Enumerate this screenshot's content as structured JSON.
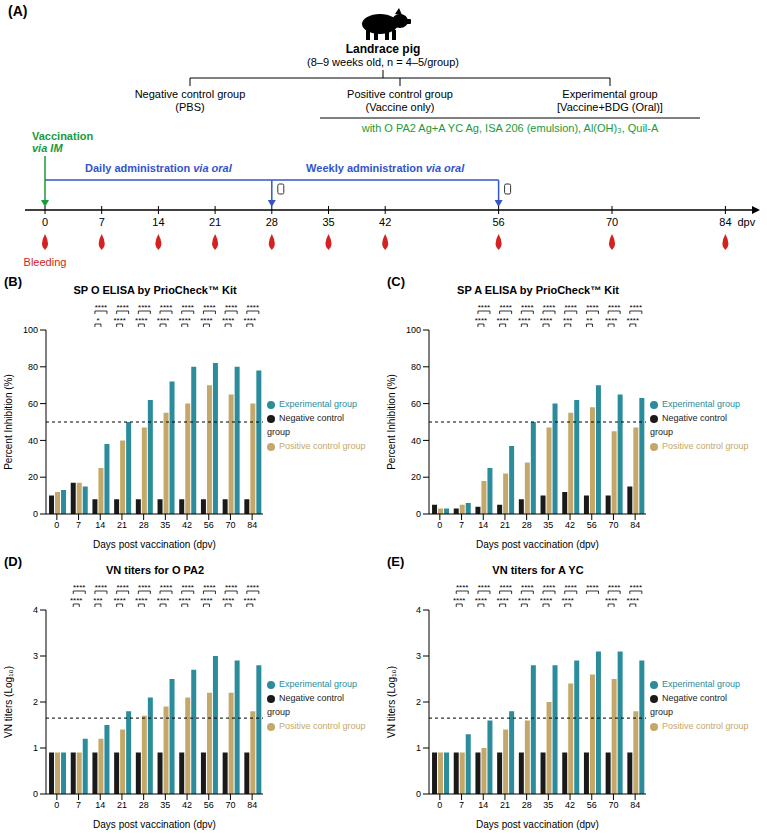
{
  "diagram": {
    "label": "(A)",
    "animal": {
      "title": "Landrace pig",
      "subtitle": "(8–9 weeks old, n = 4–5/group)"
    },
    "groups": [
      {
        "name": "Negative control group",
        "detail": "(PBS)"
      },
      {
        "name": "Positive control group",
        "detail": "(Vaccine only)"
      },
      {
        "name": "Experimental group",
        "detail": "[Vaccine+BDG (Oral)]"
      }
    ],
    "vaccine_note": "with O PA2 Ag+A YC Ag, ISA 206 (emulsion), Al(OH)₃, Quil-A",
    "timeline": {
      "days": [
        0,
        7,
        14,
        21,
        28,
        35,
        42,
        56,
        70,
        84
      ],
      "unit": "dpv",
      "vaccination": {
        "day": 0,
        "label": "Vaccination",
        "route": "via IM"
      },
      "daily": {
        "start": 0,
        "end": 28,
        "label": "Daily administration",
        "route": "via oral"
      },
      "weekly": {
        "start": 28,
        "end": 56,
        "label": "Weekly administration",
        "route": "via oral"
      },
      "bleeding": {
        "label": "Bleeding",
        "days": [
          0,
          7,
          14,
          21,
          28,
          35,
          42,
          56,
          70,
          84
        ]
      }
    }
  },
  "chart_data": [
    {
      "panel": "(B)",
      "type": "bar",
      "title": "SP O ELISA by PrioCheck™ Kit",
      "x_label": "Days post vaccination (dpv)",
      "y_label": "Percent Inhibition (%)",
      "categories": [
        "0",
        "7",
        "14",
        "21",
        "28",
        "35",
        "42",
        "56",
        "70",
        "84"
      ],
      "series": [
        {
          "name": "Negative control group",
          "color": "#1a1a1a",
          "values": [
            10,
            17,
            8,
            8,
            8,
            8,
            8,
            8,
            8,
            8
          ]
        },
        {
          "name": "Positive control group",
          "color": "#c4a86a",
          "values": [
            12,
            17,
            25,
            40,
            47,
            55,
            60,
            70,
            65,
            60
          ]
        },
        {
          "name": "Experimental group",
          "color": "#2b8c9c",
          "values": [
            13,
            15,
            38,
            50,
            62,
            72,
            80,
            82,
            80,
            78
          ]
        }
      ],
      "ylim": [
        0,
        100
      ],
      "yticks": [
        0,
        20,
        40,
        60,
        80,
        100
      ],
      "threshold": 50,
      "significance": {
        "upper": [
          null,
          null,
          "****",
          "****",
          "****",
          "****",
          "****",
          "****",
          "****",
          "****"
        ],
        "lower": [
          null,
          null,
          "*",
          "****",
          "****",
          "****",
          "****",
          "****",
          "****",
          "****"
        ]
      },
      "legend": "right"
    },
    {
      "panel": "(C)",
      "type": "bar",
      "title": "SP A ELISA by PrioCheck™ Kit",
      "x_label": "Days post vaccination (dpv)",
      "y_label": "Percent Inhibition (%)",
      "categories": [
        "0",
        "7",
        "14",
        "21",
        "28",
        "35",
        "42",
        "56",
        "70",
        "84"
      ],
      "series": [
        {
          "name": "Negative control group",
          "color": "#1a1a1a",
          "values": [
            5,
            3,
            4,
            5,
            8,
            10,
            12,
            10,
            10,
            15
          ]
        },
        {
          "name": "Positive control group",
          "color": "#c4a86a",
          "values": [
            3,
            5,
            18,
            22,
            28,
            47,
            55,
            58,
            45,
            47
          ]
        },
        {
          "name": "Experimental group",
          "color": "#2b8c9c",
          "values": [
            3,
            6,
            25,
            37,
            50,
            60,
            62,
            70,
            65,
            63
          ]
        }
      ],
      "ylim": [
        0,
        100
      ],
      "yticks": [
        0,
        20,
        40,
        60,
        80,
        100
      ],
      "threshold": 50,
      "significance": {
        "upper": [
          null,
          null,
          "****",
          "****",
          "****",
          "****",
          "****",
          "****",
          "****",
          "****"
        ],
        "lower": [
          null,
          null,
          "****",
          "****",
          "****",
          "****",
          "***",
          "**",
          "****",
          "****"
        ]
      },
      "legend": "right"
    },
    {
      "panel": "(D)",
      "type": "bar",
      "title": "VN titers for O PA2",
      "x_label": "Days post vaccination (dpv)",
      "y_label": "VN titers (Log₁₀)",
      "categories": [
        "0",
        "7",
        "14",
        "21",
        "28",
        "35",
        "42",
        "56",
        "70",
        "84"
      ],
      "series": [
        {
          "name": "Negative control group",
          "color": "#1a1a1a",
          "values": [
            0.9,
            0.9,
            0.9,
            0.9,
            0.9,
            0.9,
            0.9,
            0.9,
            0.9,
            0.9
          ]
        },
        {
          "name": "Positive control group",
          "color": "#c4a86a",
          "values": [
            0.9,
            0.9,
            1.2,
            1.4,
            1.7,
            1.9,
            2.1,
            2.2,
            2.2,
            1.8
          ]
        },
        {
          "name": "Experimental group",
          "color": "#2b8c9c",
          "values": [
            0.9,
            1.2,
            1.5,
            1.8,
            2.1,
            2.5,
            2.7,
            3.0,
            2.9,
            2.8
          ]
        }
      ],
      "ylim": [
        0,
        4
      ],
      "yticks": [
        0,
        1,
        2,
        3,
        4
      ],
      "threshold": 1.65,
      "significance": {
        "upper": [
          null,
          "****",
          "****",
          "****",
          "****",
          "****",
          "****",
          "****",
          "****",
          "****"
        ],
        "lower": [
          null,
          "****",
          "***",
          "****",
          "****",
          "****",
          "****",
          "****",
          "****",
          "****"
        ]
      },
      "legend": "right"
    },
    {
      "panel": "(E)",
      "type": "bar",
      "title": "VN titers for A YC",
      "x_label": "Days post vaccination (dpv)",
      "y_label": "VN titers (Log₁₀)",
      "categories": [
        "0",
        "7",
        "14",
        "21",
        "28",
        "35",
        "42",
        "56",
        "70",
        "84"
      ],
      "series": [
        {
          "name": "Negative control group",
          "color": "#1a1a1a",
          "values": [
            0.9,
            0.9,
            0.9,
            0.9,
            0.9,
            0.9,
            0.9,
            0.9,
            0.9,
            0.9
          ]
        },
        {
          "name": "Positive control group",
          "color": "#c4a86a",
          "values": [
            0.9,
            0.9,
            1.0,
            1.4,
            1.6,
            2.0,
            2.4,
            2.6,
            2.5,
            1.8
          ]
        },
        {
          "name": "Experimental group",
          "color": "#2b8c9c",
          "values": [
            0.9,
            1.3,
            1.6,
            1.8,
            2.8,
            2.8,
            2.9,
            3.1,
            3.1,
            2.9
          ]
        }
      ],
      "ylim": [
        0,
        4
      ],
      "yticks": [
        0,
        1,
        2,
        3,
        4
      ],
      "threshold": 1.65,
      "significance": {
        "upper": [
          null,
          "****",
          "****",
          "****",
          "****",
          "****",
          "****",
          "****",
          "****",
          "****"
        ],
        "lower": [
          null,
          "****",
          "****",
          "****",
          "****",
          "****",
          "****",
          null,
          "****",
          "****"
        ]
      },
      "legend": "right"
    }
  ]
}
